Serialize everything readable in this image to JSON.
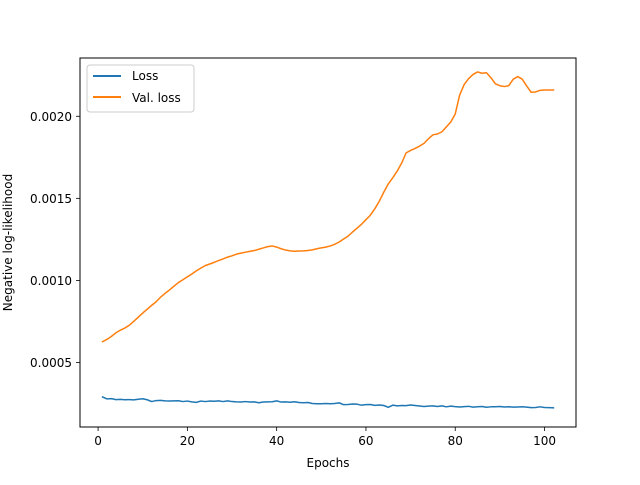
{
  "chart_data": {
    "type": "line",
    "title": "",
    "xlabel": "Epochs",
    "ylabel": "Negative log-likelihood",
    "xlim": [
      -4.05,
      107.05
    ],
    "ylim": [
      0.000107,
      0.002355
    ],
    "xticks": [
      0,
      20,
      40,
      60,
      80,
      100
    ],
    "xtick_labels": [
      "0",
      "20",
      "40",
      "60",
      "80",
      "100"
    ],
    "yticks": [
      0.0005,
      0.001,
      0.0015,
      0.002
    ],
    "ytick_labels": [
      "0.0005",
      "0.0010",
      "0.0015",
      "0.0020"
    ],
    "grid": false,
    "legend": "top-left",
    "series": [
      {
        "name": "Loss",
        "color": "#1f77b4",
        "x": [
          1,
          2,
          3,
          4,
          5,
          6,
          7,
          8,
          9,
          10,
          11,
          12,
          13,
          14,
          15,
          16,
          17,
          18,
          19,
          20,
          21,
          22,
          23,
          24,
          25,
          26,
          27,
          28,
          29,
          30,
          31,
          32,
          33,
          34,
          35,
          36,
          37,
          38,
          39,
          40,
          41,
          42,
          43,
          44,
          45,
          46,
          47,
          48,
          49,
          50,
          51,
          52,
          53,
          54,
          55,
          56,
          57,
          58,
          59,
          60,
          61,
          62,
          63,
          64,
          65,
          66,
          67,
          68,
          69,
          70,
          71,
          72,
          73,
          74,
          75,
          76,
          77,
          78,
          79,
          80,
          81,
          82,
          83,
          84,
          85,
          86,
          87,
          88,
          89,
          90,
          91,
          92,
          93,
          94,
          95,
          96,
          97,
          98,
          99,
          100,
          101,
          102
        ],
        "y": [
          0.00029,
          0.000278,
          0.00028,
          0.000274,
          0.000275,
          0.000273,
          0.000274,
          0.000272,
          0.000276,
          0.000279,
          0.000273,
          0.000262,
          0.000268,
          0.000269,
          0.000266,
          0.000265,
          0.000266,
          0.000267,
          0.000262,
          0.000265,
          0.00026,
          0.000257,
          0.000265,
          0.000262,
          0.000265,
          0.000264,
          0.000266,
          0.000262,
          0.000266,
          0.000262,
          0.00026,
          0.000259,
          0.000262,
          0.000259,
          0.00026,
          0.000255,
          0.000259,
          0.00026,
          0.000261,
          0.000266,
          0.000259,
          0.00026,
          0.000258,
          0.000261,
          0.000256,
          0.000255,
          0.000256,
          0.00025,
          0.000249,
          0.000249,
          0.00025,
          0.000249,
          0.00025,
          0.000254,
          0.000243,
          0.000244,
          0.000247,
          0.000246,
          0.00024,
          0.000243,
          0.000244,
          0.000239,
          0.000241,
          0.000238,
          0.000227,
          0.00024,
          0.000236,
          0.000238,
          0.000237,
          0.000241,
          0.000238,
          0.000235,
          0.000232,
          0.000234,
          0.000236,
          0.000232,
          0.000236,
          0.00023,
          0.000234,
          0.000231,
          0.000229,
          0.000231,
          0.000233,
          0.000228,
          0.00023,
          0.000232,
          0.000227,
          0.00023,
          0.00023,
          0.000232,
          0.000229,
          0.00023,
          0.000228,
          0.000229,
          0.00023,
          0.000228,
          0.000225,
          0.000226,
          0.00023,
          0.000226,
          0.000225,
          0.000224
        ]
      },
      {
        "name": "Val. loss",
        "color": "#ff7f0e",
        "x": [
          1,
          2,
          3,
          4,
          5,
          6,
          7,
          8,
          9,
          10,
          11,
          12,
          13,
          14,
          15,
          16,
          17,
          18,
          19,
          20,
          21,
          22,
          23,
          24,
          25,
          26,
          27,
          28,
          29,
          30,
          31,
          32,
          33,
          34,
          35,
          36,
          37,
          38,
          39,
          40,
          41,
          42,
          43,
          44,
          45,
          46,
          47,
          48,
          49,
          50,
          51,
          52,
          53,
          54,
          55,
          56,
          57,
          58,
          59,
          60,
          61,
          62,
          63,
          64,
          65,
          66,
          67,
          68,
          69,
          70,
          71,
          72,
          73,
          74,
          75,
          76,
          77,
          78,
          79,
          80,
          81,
          82,
          83,
          84,
          85,
          86,
          87,
          88,
          89,
          90,
          91,
          92,
          93,
          94,
          95,
          96,
          97,
          98,
          99,
          100,
          101,
          102
        ],
        "y": [
          0.000627,
          0.000641,
          0.000659,
          0.000681,
          0.000697,
          0.00071,
          0.000727,
          0.000751,
          0.000776,
          0.000801,
          0.000825,
          0.000848,
          0.00087,
          0.000898,
          0.000921,
          0.000942,
          0.000965,
          0.000987,
          0.001004,
          0.001022,
          0.001039,
          0.001058,
          0.001075,
          0.00109,
          0.0011,
          0.00111,
          0.001121,
          0.001131,
          0.001142,
          0.00115,
          0.00116,
          0.001166,
          0.001172,
          0.001177,
          0.001182,
          0.00119,
          0.001198,
          0.001206,
          0.00121,
          0.001203,
          0.001193,
          0.001185,
          0.00118,
          0.001178,
          0.001179,
          0.00118,
          0.001182,
          0.001186,
          0.001193,
          0.001198,
          0.001203,
          0.00121,
          0.00122,
          0.001234,
          0.001252,
          0.00127,
          0.001295,
          0.001318,
          0.001342,
          0.00137,
          0.001398,
          0.001437,
          0.001483,
          0.001538,
          0.001588,
          0.001625,
          0.001666,
          0.001715,
          0.001777,
          0.001792,
          0.001804,
          0.001818,
          0.001835,
          0.001863,
          0.001887,
          0.001892,
          0.001905,
          0.001935,
          0.001965,
          0.002014,
          0.00213,
          0.002193,
          0.00223,
          0.002255,
          0.00227,
          0.002262,
          0.002265,
          0.002235,
          0.002198,
          0.002186,
          0.002181,
          0.002187,
          0.002226,
          0.002242,
          0.002226,
          0.002185,
          0.002146,
          0.002148,
          0.002158,
          0.00216,
          0.00216,
          0.00216
        ]
      }
    ]
  }
}
